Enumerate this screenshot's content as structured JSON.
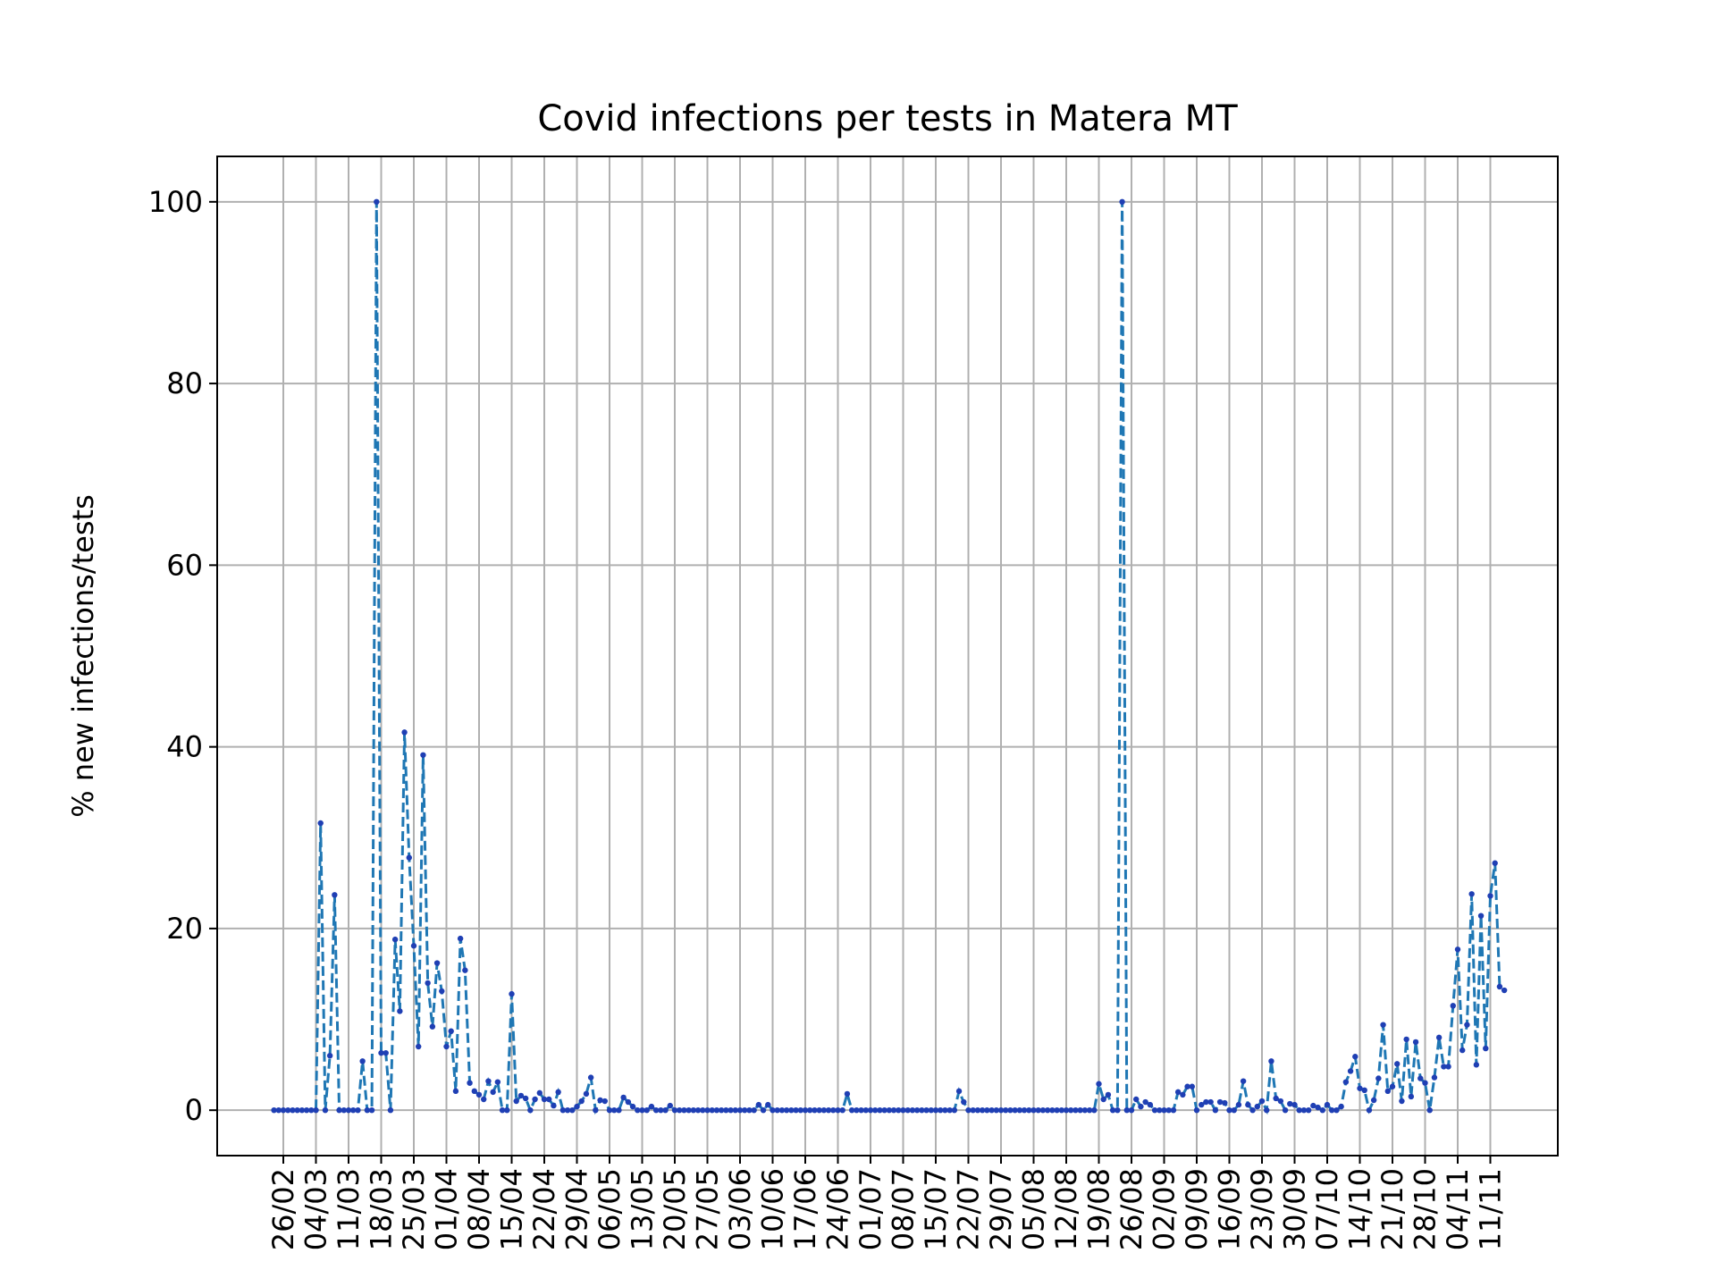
{
  "chart_data": {
    "type": "line",
    "title": "Covid infections per tests in Matera MT",
    "xlabel": "",
    "ylabel": "% new infections/tests",
    "ylim": [
      -5,
      105
    ],
    "yticks": [
      0,
      20,
      40,
      60,
      80,
      100
    ],
    "grid": true,
    "legend": "none",
    "line_style": "dashed",
    "color": "#1f77b4",
    "x_start": "24/02",
    "x_tick_labels": [
      "26/02",
      "04/03",
      "11/03",
      "18/03",
      "25/03",
      "01/04",
      "08/04",
      "15/04",
      "22/04",
      "29/04",
      "06/05",
      "13/05",
      "20/05",
      "27/05",
      "03/06",
      "10/06",
      "17/06",
      "24/06",
      "01/07",
      "08/07",
      "15/07",
      "22/07",
      "29/07",
      "05/08",
      "12/08",
      "19/08",
      "26/08",
      "02/09",
      "09/09",
      "16/09",
      "23/09",
      "30/09",
      "07/10",
      "14/10",
      "21/10",
      "28/10",
      "04/11",
      "11/11"
    ],
    "values": [
      0,
      0,
      0,
      0,
      0,
      0,
      0,
      0,
      0,
      0,
      31.6,
      0,
      6,
      23.7,
      0,
      0,
      0,
      0,
      0,
      5.4,
      0,
      0,
      100,
      6.3,
      6.3,
      0,
      18.8,
      10.9,
      41.6,
      27.8,
      18.1,
      7,
      39.1,
      14,
      9.2,
      16.2,
      13.1,
      7,
      8.7,
      2.1,
      18.9,
      15.4,
      3,
      2.1,
      1.7,
      1.2,
      3.2,
      2,
      3.1,
      0,
      0,
      12.8,
      1,
      1.6,
      1.3,
      0,
      1.2,
      1.9,
      1.2,
      1.2,
      0.5,
      2,
      0,
      0,
      0,
      0.4,
      1,
      1.8,
      3.6,
      0,
      1.1,
      1,
      0,
      0,
      0,
      1.4,
      0.9,
      0.4,
      0,
      0,
      0,
      0.4,
      0,
      0,
      0,
      0.5,
      0,
      0,
      0,
      0,
      0,
      0,
      0,
      0,
      0,
      0,
      0,
      0,
      0,
      0,
      0,
      0,
      0,
      0,
      0.6,
      0,
      0.6,
      0,
      0,
      0,
      0,
      0,
      0,
      0,
      0,
      0,
      0,
      0,
      0,
      0,
      0,
      0,
      0,
      1.8,
      0,
      0,
      0,
      0,
      0,
      0,
      0,
      0,
      0,
      0,
      0,
      0,
      0,
      0,
      0,
      0,
      0,
      0,
      0,
      0,
      0,
      0,
      0,
      2.1,
      0.9,
      0,
      0,
      0,
      0,
      0,
      0,
      0,
      0,
      0,
      0,
      0,
      0,
      0,
      0,
      0,
      0,
      0,
      0,
      0,
      0,
      0,
      0,
      0,
      0,
      0,
      0,
      0,
      0,
      2.9,
      1.2,
      1.7,
      0,
      0,
      100,
      0,
      0,
      1.2,
      0.4,
      0.9,
      0.6,
      0,
      0,
      0,
      0,
      0,
      2,
      1.7,
      2.6,
      2.6,
      0,
      0.6,
      0.9,
      0.9,
      0,
      0.9,
      0.8,
      0,
      0,
      0.6,
      3.2,
      0.6,
      0,
      0.4,
      1,
      0,
      5.4,
      1.3,
      1,
      0,
      0.7,
      0.6,
      0,
      0,
      0,
      0.5,
      0.3,
      0,
      0.6,
      0,
      0,
      0.4,
      3.1,
      4.3,
      5.9,
      2.4,
      2.2,
      0,
      1.1,
      3.5,
      9.4,
      2.1,
      2.6,
      5.1,
      1,
      7.8,
      1.5,
      7.5,
      3.5,
      3,
      0,
      3.6,
      8,
      4.8,
      4.8,
      11.5,
      17.7,
      6.6,
      9.4,
      23.8,
      5,
      21.4,
      6.8,
      23.6,
      27.2,
      13.6,
      13.2
    ]
  }
}
